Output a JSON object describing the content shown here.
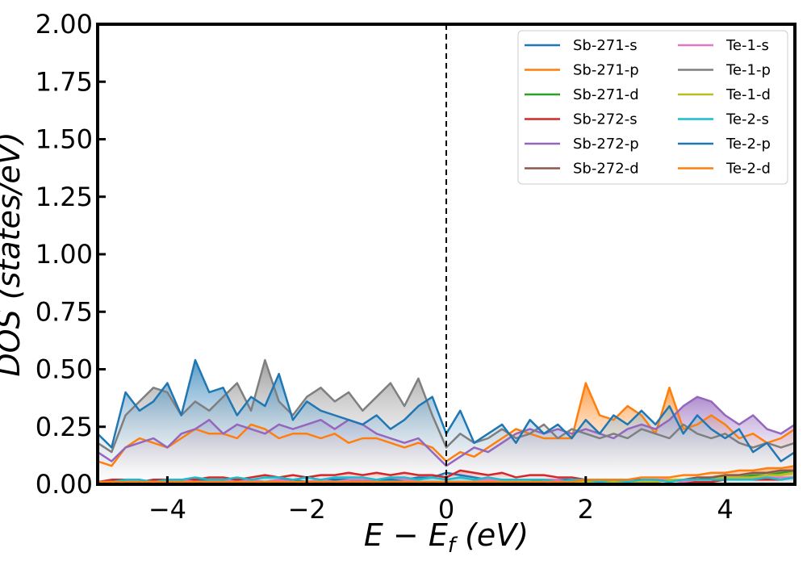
{
  "chart_data": {
    "type": "area",
    "title": "",
    "xlabel": "E − E",
    "xlabel_sub": "f",
    "xlabel_unit": " (eV)",
    "ylabel": "DOS (states/eV)",
    "xlim": [
      -5,
      5
    ],
    "ylim": [
      0,
      2.0
    ],
    "xticks": [
      -4,
      -2,
      0,
      2,
      4
    ],
    "xtick_labels": [
      "−4",
      "−2",
      "0",
      "2",
      "4"
    ],
    "yticks": [
      0,
      0.25,
      0.5,
      0.75,
      1.0,
      1.25,
      1.5,
      1.75,
      2.0
    ],
    "ytick_labels": [
      "0.00",
      "0.25",
      "0.50",
      "0.75",
      "1.00",
      "1.25",
      "1.50",
      "1.75",
      "2.00"
    ],
    "fermi_level": 0,
    "grid": false,
    "legend_position": "top-right",
    "legend_columns": 2,
    "x": [
      -5.0,
      -4.8,
      -4.6,
      -4.4,
      -4.2,
      -4.0,
      -3.8,
      -3.6,
      -3.4,
      -3.2,
      -3.0,
      -2.8,
      -2.6,
      -2.4,
      -2.2,
      -2.0,
      -1.8,
      -1.6,
      -1.4,
      -1.2,
      -1.0,
      -0.8,
      -0.6,
      -0.4,
      -0.2,
      0.0,
      0.2,
      0.4,
      0.6,
      0.8,
      1.0,
      1.2,
      1.4,
      1.6,
      1.8,
      2.0,
      2.2,
      2.4,
      2.6,
      2.8,
      3.0,
      3.2,
      3.4,
      3.6,
      3.8,
      4.0,
      4.2,
      4.4,
      4.6,
      4.8,
      5.0
    ],
    "series": [
      {
        "name": "Sb-271-s",
        "color": "#1f77b4",
        "values": [
          0.01,
          0.01,
          0.02,
          0.01,
          0.02,
          0.02,
          0.01,
          0.02,
          0.02,
          0.01,
          0.02,
          0.02,
          0.01,
          0.02,
          0.02,
          0.01,
          0.02,
          0.02,
          0.02,
          0.01,
          0.02,
          0.02,
          0.02,
          0.03,
          0.03,
          0.05,
          0.04,
          0.03,
          0.02,
          0.02,
          0.02,
          0.02,
          0.01,
          0.02,
          0.02,
          0.02,
          0.02,
          0.01,
          0.02,
          0.02,
          0.02,
          0.02,
          0.02,
          0.02,
          0.02,
          0.02,
          0.02,
          0.03,
          0.02,
          0.02,
          0.03
        ]
      },
      {
        "name": "Sb-271-p",
        "color": "#ff7f0e",
        "values": [
          0.1,
          0.08,
          0.16,
          0.2,
          0.18,
          0.16,
          0.2,
          0.24,
          0.22,
          0.22,
          0.2,
          0.26,
          0.24,
          0.2,
          0.22,
          0.22,
          0.2,
          0.22,
          0.18,
          0.2,
          0.2,
          0.18,
          0.16,
          0.18,
          0.16,
          0.1,
          0.14,
          0.12,
          0.16,
          0.2,
          0.24,
          0.22,
          0.2,
          0.2,
          0.2,
          0.44,
          0.3,
          0.28,
          0.34,
          0.3,
          0.22,
          0.42,
          0.24,
          0.26,
          0.3,
          0.26,
          0.2,
          0.22,
          0.18,
          0.2,
          0.24
        ]
      },
      {
        "name": "Sb-271-d",
        "color": "#2ca02c",
        "values": [
          0.01,
          0.01,
          0.01,
          0.01,
          0.01,
          0.01,
          0.01,
          0.01,
          0.01,
          0.01,
          0.01,
          0.01,
          0.01,
          0.01,
          0.01,
          0.01,
          0.01,
          0.01,
          0.01,
          0.01,
          0.01,
          0.01,
          0.01,
          0.01,
          0.01,
          0.01,
          0.01,
          0.01,
          0.01,
          0.01,
          0.01,
          0.01,
          0.01,
          0.01,
          0.01,
          0.01,
          0.01,
          0.01,
          0.01,
          0.02,
          0.02,
          0.02,
          0.02,
          0.02,
          0.03,
          0.03,
          0.03,
          0.04,
          0.04,
          0.05,
          0.06
        ]
      },
      {
        "name": "Sb-272-s",
        "color": "#d62728",
        "values": [
          0.01,
          0.02,
          0.02,
          0.01,
          0.02,
          0.02,
          0.02,
          0.02,
          0.03,
          0.03,
          0.02,
          0.03,
          0.04,
          0.03,
          0.04,
          0.03,
          0.04,
          0.04,
          0.05,
          0.04,
          0.05,
          0.04,
          0.05,
          0.04,
          0.04,
          0.03,
          0.06,
          0.05,
          0.04,
          0.05,
          0.03,
          0.04,
          0.04,
          0.03,
          0.03,
          0.02,
          0.02,
          0.02,
          0.02,
          0.02,
          0.01,
          0.02,
          0.01,
          0.01,
          0.01,
          0.02,
          0.02,
          0.02,
          0.02,
          0.02,
          0.03
        ]
      },
      {
        "name": "Sb-272-p",
        "color": "#9467bd",
        "values": [
          0.14,
          0.1,
          0.16,
          0.18,
          0.2,
          0.16,
          0.22,
          0.24,
          0.28,
          0.22,
          0.26,
          0.24,
          0.22,
          0.26,
          0.24,
          0.26,
          0.28,
          0.24,
          0.28,
          0.26,
          0.22,
          0.2,
          0.18,
          0.2,
          0.14,
          0.08,
          0.12,
          0.16,
          0.14,
          0.18,
          0.22,
          0.24,
          0.22,
          0.24,
          0.22,
          0.24,
          0.22,
          0.2,
          0.24,
          0.26,
          0.24,
          0.28,
          0.34,
          0.38,
          0.36,
          0.3,
          0.26,
          0.3,
          0.24,
          0.22,
          0.26
        ]
      },
      {
        "name": "Sb-272-d",
        "color": "#8c564b",
        "values": [
          0.01,
          0.01,
          0.01,
          0.01,
          0.01,
          0.01,
          0.01,
          0.01,
          0.01,
          0.01,
          0.01,
          0.01,
          0.01,
          0.01,
          0.01,
          0.01,
          0.01,
          0.01,
          0.01,
          0.01,
          0.01,
          0.01,
          0.01,
          0.01,
          0.01,
          0.01,
          0.01,
          0.01,
          0.01,
          0.01,
          0.01,
          0.01,
          0.01,
          0.01,
          0.01,
          0.01,
          0.01,
          0.01,
          0.01,
          0.01,
          0.02,
          0.02,
          0.02,
          0.03,
          0.03,
          0.04,
          0.04,
          0.05,
          0.05,
          0.06,
          0.06
        ]
      },
      {
        "name": "Te-1-s",
        "color": "#e377c2",
        "values": [
          0.01,
          0.01,
          0.01,
          0.02,
          0.01,
          0.01,
          0.02,
          0.01,
          0.01,
          0.02,
          0.01,
          0.02,
          0.01,
          0.02,
          0.01,
          0.01,
          0.02,
          0.01,
          0.02,
          0.02,
          0.02,
          0.03,
          0.02,
          0.02,
          0.03,
          0.02,
          0.03,
          0.02,
          0.02,
          0.02,
          0.02,
          0.02,
          0.02,
          0.02,
          0.01,
          0.02,
          0.02,
          0.01,
          0.02,
          0.01,
          0.02,
          0.02,
          0.01,
          0.02,
          0.02,
          0.02,
          0.02,
          0.03,
          0.03,
          0.03,
          0.03
        ]
      },
      {
        "name": "Te-1-p",
        "color": "#7f7f7f",
        "values": [
          0.18,
          0.14,
          0.3,
          0.36,
          0.42,
          0.4,
          0.3,
          0.36,
          0.32,
          0.38,
          0.44,
          0.32,
          0.54,
          0.36,
          0.3,
          0.38,
          0.42,
          0.36,
          0.4,
          0.32,
          0.38,
          0.44,
          0.34,
          0.46,
          0.3,
          0.16,
          0.22,
          0.18,
          0.2,
          0.24,
          0.2,
          0.22,
          0.26,
          0.2,
          0.24,
          0.22,
          0.2,
          0.22,
          0.2,
          0.24,
          0.22,
          0.2,
          0.26,
          0.22,
          0.2,
          0.22,
          0.18,
          0.16,
          0.18,
          0.16,
          0.18
        ]
      },
      {
        "name": "Te-1-d",
        "color": "#bcbd22",
        "values": [
          0.01,
          0.01,
          0.01,
          0.01,
          0.01,
          0.01,
          0.01,
          0.01,
          0.01,
          0.01,
          0.01,
          0.01,
          0.01,
          0.01,
          0.01,
          0.01,
          0.01,
          0.01,
          0.01,
          0.01,
          0.01,
          0.01,
          0.01,
          0.01,
          0.01,
          0.01,
          0.01,
          0.01,
          0.01,
          0.01,
          0.01,
          0.01,
          0.01,
          0.01,
          0.01,
          0.01,
          0.01,
          0.01,
          0.01,
          0.01,
          0.01,
          0.02,
          0.02,
          0.02,
          0.02,
          0.03,
          0.03,
          0.03,
          0.04,
          0.04,
          0.05
        ]
      },
      {
        "name": "Te-2-s",
        "color": "#17becf",
        "values": [
          0.01,
          0.01,
          0.02,
          0.02,
          0.01,
          0.02,
          0.02,
          0.03,
          0.02,
          0.02,
          0.03,
          0.02,
          0.03,
          0.03,
          0.02,
          0.03,
          0.02,
          0.03,
          0.03,
          0.03,
          0.02,
          0.03,
          0.03,
          0.02,
          0.03,
          0.02,
          0.03,
          0.02,
          0.03,
          0.02,
          0.02,
          0.02,
          0.02,
          0.01,
          0.02,
          0.02,
          0.01,
          0.02,
          0.01,
          0.02,
          0.02,
          0.01,
          0.02,
          0.02,
          0.02,
          0.02,
          0.02,
          0.02,
          0.03,
          0.02,
          0.03
        ]
      },
      {
        "name": "Te-2-p",
        "color": "#1f77b4",
        "values": [
          0.22,
          0.16,
          0.4,
          0.32,
          0.36,
          0.44,
          0.3,
          0.54,
          0.4,
          0.42,
          0.3,
          0.38,
          0.34,
          0.48,
          0.28,
          0.36,
          0.32,
          0.3,
          0.28,
          0.26,
          0.3,
          0.24,
          0.28,
          0.34,
          0.38,
          0.22,
          0.32,
          0.18,
          0.22,
          0.26,
          0.18,
          0.28,
          0.22,
          0.26,
          0.2,
          0.28,
          0.22,
          0.3,
          0.26,
          0.32,
          0.26,
          0.34,
          0.22,
          0.3,
          0.24,
          0.2,
          0.24,
          0.14,
          0.18,
          0.1,
          0.14
        ]
      },
      {
        "name": "Te-2-d",
        "color": "#ff7f0e",
        "values": [
          0.01,
          0.01,
          0.01,
          0.01,
          0.01,
          0.01,
          0.01,
          0.01,
          0.01,
          0.01,
          0.01,
          0.01,
          0.01,
          0.01,
          0.01,
          0.01,
          0.01,
          0.01,
          0.01,
          0.01,
          0.01,
          0.01,
          0.01,
          0.01,
          0.01,
          0.01,
          0.01,
          0.01,
          0.01,
          0.01,
          0.01,
          0.01,
          0.01,
          0.01,
          0.01,
          0.02,
          0.02,
          0.02,
          0.02,
          0.03,
          0.03,
          0.03,
          0.04,
          0.04,
          0.05,
          0.05,
          0.06,
          0.06,
          0.07,
          0.07,
          0.08
        ]
      }
    ]
  }
}
